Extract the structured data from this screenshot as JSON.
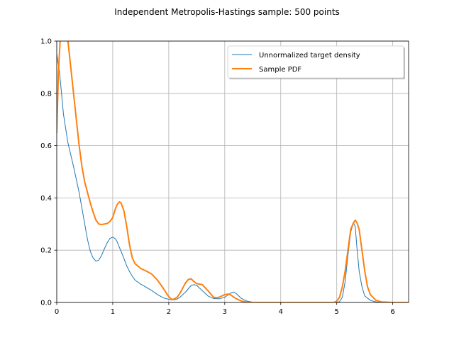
{
  "chart_data": {
    "type": "line",
    "title": "Independent Metropolis-Hastings sample: 500 points",
    "xlabel": "",
    "ylabel": "",
    "xlim": [
      0,
      6.283
    ],
    "ylim": [
      0,
      1.0
    ],
    "xticks": [
      0,
      1,
      2,
      3,
      4,
      5,
      6
    ],
    "xtick_labels": [
      "0",
      "1",
      "2",
      "3",
      "4",
      "5",
      "6"
    ],
    "yticks": [
      0.0,
      0.2,
      0.4,
      0.6,
      0.8,
      1.0
    ],
    "ytick_labels": [
      "0.0",
      "0.2",
      "0.4",
      "0.6",
      "0.8",
      "1.0"
    ],
    "grid": true,
    "legend_position": "top-right",
    "series": [
      {
        "name": "Unnormalized target density",
        "color": "#1f77b4",
        "x": [
          0,
          0.05,
          0.12,
          0.2,
          0.3,
          0.4,
          0.5,
          0.55,
          0.6,
          0.65,
          0.7,
          0.75,
          0.8,
          0.85,
          0.9,
          0.95,
          1.0,
          1.05,
          1.08,
          1.1,
          1.15,
          1.2,
          1.25,
          1.3,
          1.35,
          1.4,
          1.5,
          1.6,
          1.7,
          1.8,
          1.9,
          2.0,
          2.05,
          2.1,
          2.15,
          2.2,
          2.3,
          2.4,
          2.45,
          2.5,
          2.6,
          2.7,
          2.8,
          2.9,
          3.0,
          3.1,
          3.15,
          3.2,
          3.3,
          3.4,
          3.5,
          3.6,
          4.0,
          4.5,
          5.0,
          5.05,
          5.1,
          5.15,
          5.2,
          5.25,
          5.3,
          5.33,
          5.36,
          5.4,
          5.45,
          5.5,
          5.6,
          5.7,
          5.8,
          6.0,
          6.283
        ],
        "y": [
          0.95,
          0.88,
          0.72,
          0.61,
          0.52,
          0.42,
          0.3,
          0.24,
          0.195,
          0.17,
          0.158,
          0.162,
          0.18,
          0.205,
          0.228,
          0.245,
          0.25,
          0.243,
          0.232,
          0.22,
          0.195,
          0.168,
          0.14,
          0.118,
          0.1,
          0.085,
          0.07,
          0.058,
          0.045,
          0.03,
          0.018,
          0.012,
          0.01,
          0.01,
          0.013,
          0.02,
          0.04,
          0.065,
          0.068,
          0.065,
          0.045,
          0.025,
          0.015,
          0.014,
          0.02,
          0.035,
          0.04,
          0.035,
          0.015,
          0.005,
          0.001,
          0.0,
          0.0,
          0.0,
          0.0,
          0.003,
          0.02,
          0.08,
          0.18,
          0.27,
          0.305,
          0.29,
          0.21,
          0.12,
          0.06,
          0.025,
          0.008,
          0.002,
          0.0,
          0.0,
          0.0
        ]
      },
      {
        "name": "Sample PDF",
        "color": "#ff7f0e",
        "x": [
          0,
          0.03,
          0.06,
          0.09,
          0.12,
          0.16,
          0.2,
          0.25,
          0.3,
          0.35,
          0.4,
          0.45,
          0.5,
          0.55,
          0.6,
          0.65,
          0.7,
          0.75,
          0.8,
          0.85,
          0.9,
          0.95,
          1.0,
          1.05,
          1.08,
          1.12,
          1.15,
          1.2,
          1.25,
          1.3,
          1.35,
          1.4,
          1.5,
          1.6,
          1.7,
          1.8,
          1.9,
          1.95,
          2.0,
          2.05,
          2.1,
          2.15,
          2.2,
          2.25,
          2.3,
          2.35,
          2.4,
          2.45,
          2.5,
          2.55,
          2.6,
          2.7,
          2.8,
          2.85,
          2.9,
          2.95,
          3.0,
          3.05,
          3.1,
          3.15,
          3.2,
          3.3,
          3.4,
          3.5,
          4.0,
          4.5,
          4.95,
          5.0,
          5.05,
          5.1,
          5.15,
          5.2,
          5.25,
          5.3,
          5.33,
          5.36,
          5.4,
          5.45,
          5.5,
          5.55,
          5.6,
          5.7,
          5.8,
          6.0,
          6.283
        ],
        "y": [
          0.65,
          0.88,
          1.0,
          1.05,
          1.07,
          1.04,
          1.0,
          0.9,
          0.8,
          0.7,
          0.6,
          0.52,
          0.46,
          0.42,
          0.38,
          0.345,
          0.315,
          0.3,
          0.298,
          0.3,
          0.302,
          0.31,
          0.325,
          0.36,
          0.375,
          0.385,
          0.38,
          0.35,
          0.29,
          0.22,
          0.17,
          0.148,
          0.13,
          0.12,
          0.108,
          0.085,
          0.055,
          0.038,
          0.022,
          0.012,
          0.013,
          0.02,
          0.035,
          0.055,
          0.075,
          0.088,
          0.09,
          0.08,
          0.072,
          0.07,
          0.068,
          0.045,
          0.02,
          0.018,
          0.02,
          0.025,
          0.03,
          0.032,
          0.03,
          0.022,
          0.015,
          0.005,
          0.001,
          0.0,
          0.0,
          0.0,
          0.0,
          0.005,
          0.02,
          0.06,
          0.12,
          0.2,
          0.28,
          0.305,
          0.315,
          0.305,
          0.28,
          0.2,
          0.12,
          0.06,
          0.03,
          0.008,
          0.002,
          0.0,
          0.0
        ]
      }
    ]
  }
}
